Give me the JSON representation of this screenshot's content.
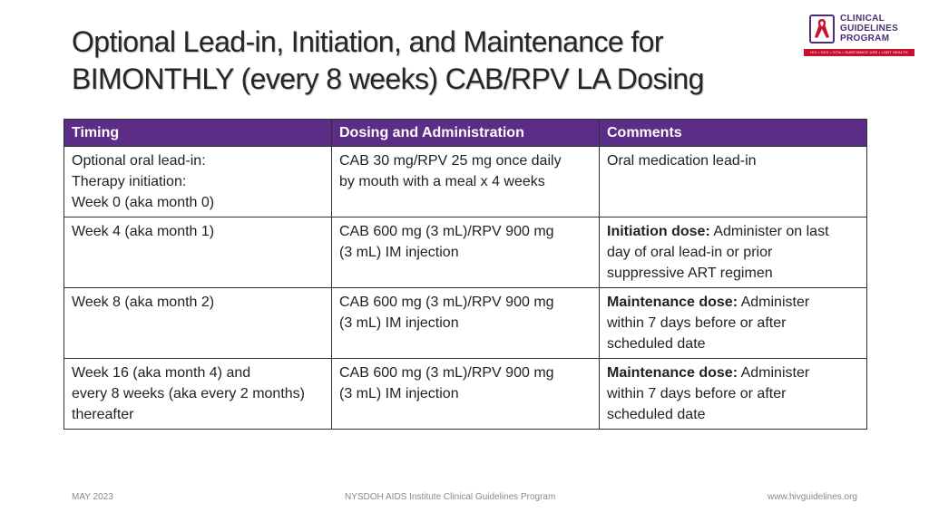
{
  "title": {
    "line1": "Optional Lead-in, Initiation, and Maintenance for",
    "line2": "BIMONTHLY (every 8 weeks) CAB/RPV LA Dosing"
  },
  "logo": {
    "line1": "CLINICAL",
    "line2": "GUIDELINES",
    "line3": "PROGRAM",
    "tagline": "HIV • HCV • STIs • SUBSTANCE USE • LGBT HEALTH"
  },
  "table": {
    "headers": [
      "Timing",
      "Dosing and Administration",
      "Comments"
    ],
    "rows": [
      {
        "timing": [
          "Optional oral lead-in:",
          "Therapy initiation:",
          "Week 0 (aka month 0)"
        ],
        "dosing": [
          "CAB 30 mg/RPV 25 mg once daily",
          "by mouth with a meal x 4 weeks"
        ],
        "comment_bold": "",
        "comment": [
          "Oral medication lead-in"
        ]
      },
      {
        "timing": [
          "Week 4 (aka month 1)"
        ],
        "dosing": [
          "CAB 600 mg (3 mL)/RPV 900 mg",
          "(3 mL) IM injection"
        ],
        "comment_bold": "Initiation dose:",
        "comment": [
          " Administer on last",
          "day of oral lead-in or prior",
          "suppressive ART regimen"
        ]
      },
      {
        "timing": [
          "Week 8 (aka month 2)"
        ],
        "dosing": [
          "CAB 600 mg (3 mL)/RPV 900 mg",
          "(3 mL) IM injection"
        ],
        "comment_bold": "Maintenance dose:",
        "comment": [
          " Administer",
          "within 7 days before or after",
          "scheduled date"
        ]
      },
      {
        "timing": [
          "Week 16 (aka month 4) and",
          "every 8 weeks (aka every 2 months)",
          "thereafter"
        ],
        "dosing": [
          "CAB 600 mg (3 mL)/RPV 900 mg",
          "(3 mL) IM injection"
        ],
        "comment_bold": "Maintenance dose:",
        "comment": [
          " Administer",
          "within 7 days before or after",
          "scheduled date"
        ]
      }
    ]
  },
  "footer": {
    "date": "MAY 2023",
    "org": "NYSDOH AIDS Institute Clinical Guidelines Program",
    "url": "www.hivguidelines.org"
  },
  "colors": {
    "header_bg": "#5b2d86",
    "logo_purple": "#4b2f6e",
    "logo_red": "#c8102e"
  }
}
